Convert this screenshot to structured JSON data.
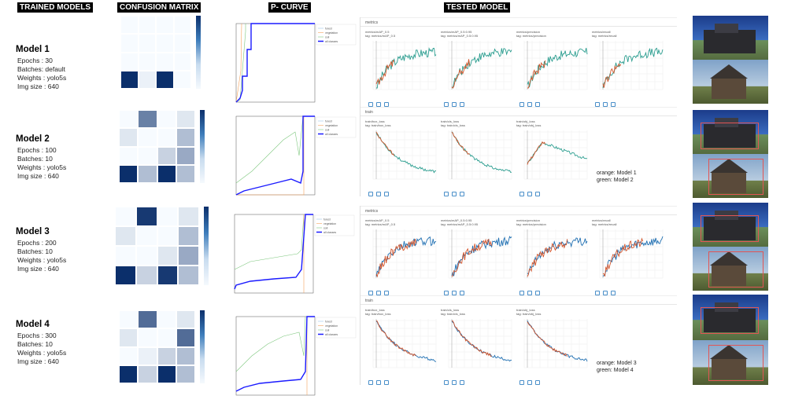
{
  "headers": {
    "trained": "TRAINED MODELS",
    "confusion": "CONFUSION MATRIX",
    "pcurve": "P- CURVE",
    "tested": "TESTED MODEL"
  },
  "models": [
    {
      "title": "Model 1",
      "epochs": "Epochs :  30",
      "batches": "Batches: default",
      "weights": "Weights : yolo5s",
      "img": "Img size : 640"
    },
    {
      "title": "Model 2",
      "epochs": "Epochs :  100",
      "batches": "Batches: 10",
      "weights": "Weights : yolo5s",
      "img": "Img size : 640"
    },
    {
      "title": "Model 3",
      "epochs": "Epochs :  200",
      "batches": "Batches: 10",
      "weights": "Weights : yolo5s",
      "img": "Img size : 640"
    },
    {
      "title": "Model 4",
      "epochs": "Epochs :  300",
      "batches": "Batches: 10",
      "weights": "Weights : yolo5s",
      "img": "Img size : 640"
    }
  ],
  "confusion_matrices": [
    [
      [
        0,
        0,
        0,
        0
      ],
      [
        0,
        0,
        0,
        0
      ],
      [
        0,
        0,
        0,
        0
      ],
      [
        1,
        0.05,
        1,
        0
      ]
    ],
    [
      [
        0,
        0.6,
        0,
        0.1
      ],
      [
        0.1,
        0,
        0,
        0.3
      ],
      [
        0,
        0,
        0.2,
        0.4
      ],
      [
        1,
        0.3,
        1,
        0.3
      ]
    ],
    [
      [
        0,
        0.95,
        0,
        0.1
      ],
      [
        0.1,
        0,
        0,
        0.3
      ],
      [
        0,
        0,
        0.1,
        0.4
      ],
      [
        1,
        0.2,
        0.95,
        0.3
      ]
    ],
    [
      [
        0,
        0.7,
        0,
        0.1
      ],
      [
        0.1,
        0,
        0,
        0.7
      ],
      [
        0,
        0.05,
        0.2,
        0.3
      ],
      [
        1,
        0.2,
        1,
        0.3
      ]
    ]
  ],
  "pcurve_legend": [
    "forest",
    "vegetation",
    "soil",
    "all classes"
  ],
  "tensorboard": {
    "sections": {
      "metrics": "metrics",
      "train": "train"
    },
    "metrics": [
      {
        "title": "metrics/mAP_0.5",
        "tag": "tag: metrics/mAP_0.5"
      },
      {
        "title": "metrics/mAP_0.5:0.95",
        "tag": "tag: metrics/mAP_0.5:0.95"
      },
      {
        "title": "metrics/precision",
        "tag": "tag: metrics/precision"
      },
      {
        "title": "metrics/recall",
        "tag": "tag: metrics/recall"
      }
    ],
    "train": [
      {
        "title": "train/box_loss",
        "tag": "tag: train/box_loss"
      },
      {
        "title": "train/cls_loss",
        "tag": "tag: train/cls_loss"
      },
      {
        "title": "train/obj_loss",
        "tag": "tag: train/obj_loss"
      }
    ],
    "legends": [
      {
        "orange": "orange: Model 1",
        "green": "green: Model 2"
      },
      {
        "orange": "orange: Model 3",
        "green": "green: Model 4"
      }
    ]
  },
  "colors": {
    "orange": "#d4552b",
    "green": "#2a9d8f",
    "blue": "#1f6fb2",
    "cm_dark": "#0b2f6b",
    "pcurve_all": "#1a1aff"
  }
}
